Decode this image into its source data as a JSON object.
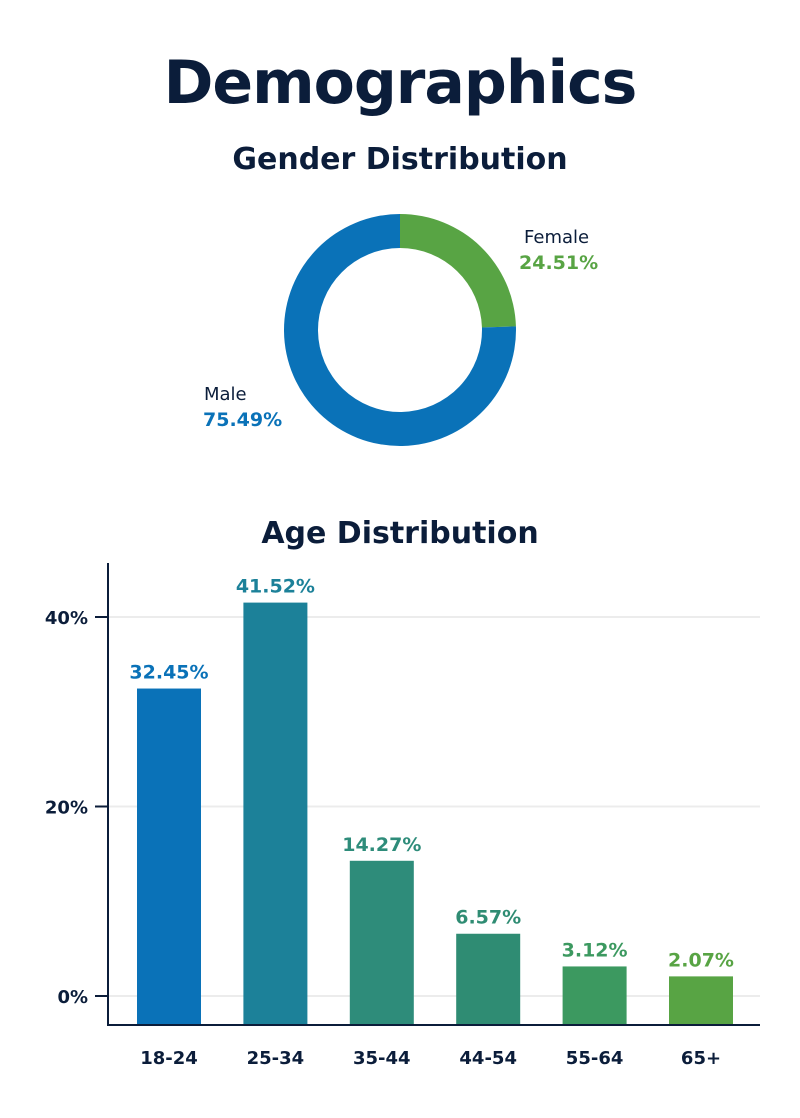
{
  "header": {
    "title": "Demographics"
  },
  "chart_data": [
    {
      "type": "pie",
      "title": "Gender Distribution",
      "categories": [
        "Female",
        "Male"
      ],
      "values": [
        24.51,
        75.49
      ],
      "value_labels": [
        "24.51%",
        "75.49%"
      ],
      "colors": [
        "#58a444",
        "#0a72b8"
      ]
    },
    {
      "type": "bar",
      "title": "Age Distribution",
      "categories": [
        "18-24",
        "25-34",
        "35-44",
        "44-54",
        "55-64",
        "65+"
      ],
      "values": [
        32.45,
        41.52,
        14.27,
        6.57,
        3.12,
        2.07
      ],
      "value_labels": [
        "32.45%",
        "41.52%",
        "14.27%",
        "6.57%",
        "3.12%",
        "2.07%"
      ],
      "colors": [
        "#0a72b8",
        "#1c8199",
        "#2e8c7a",
        "#2f8c73",
        "#3c9960",
        "#58a444"
      ],
      "yticks": [
        0,
        20,
        40
      ],
      "ytick_labels": [
        "0%",
        "20%",
        "40%"
      ],
      "ylim": [
        -3,
        46
      ],
      "grid": true,
      "xlabel": "",
      "ylabel": ""
    }
  ]
}
